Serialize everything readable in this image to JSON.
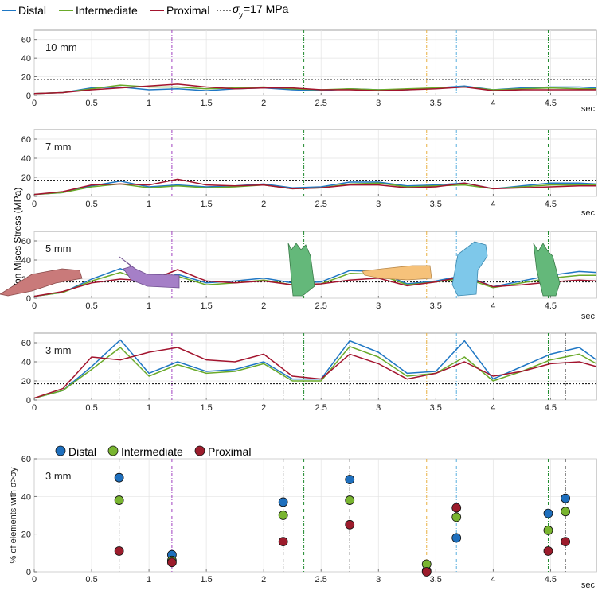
{
  "chart_data": [
    {
      "type": "line",
      "title": "",
      "panel_label": "10 mm",
      "xlabel": "sec",
      "ylabel": "",
      "xlim": [
        0,
        4.9
      ],
      "ylim": [
        0,
        70
      ],
      "xticks": [
        0,
        0.5,
        1,
        1.5,
        2,
        2.5,
        3,
        3.5,
        4,
        4.5
      ],
      "yticks": [
        0,
        20,
        40,
        60
      ],
      "x": [
        0,
        0.25,
        0.5,
        0.75,
        1,
        1.25,
        1.5,
        1.75,
        2,
        2.25,
        2.5,
        2.75,
        3,
        3.25,
        3.5,
        3.75,
        4,
        4.25,
        4.5,
        4.75,
        4.9
      ],
      "series": [
        {
          "name": "Distal",
          "values": [
            2,
            3,
            8,
            9,
            6,
            7,
            5,
            7,
            8,
            6,
            5,
            7,
            6,
            6,
            8,
            10,
            6,
            8,
            9,
            9,
            8
          ]
        },
        {
          "name": "Intermediate",
          "values": [
            2,
            3,
            7,
            11,
            9,
            9,
            7,
            8,
            9,
            7,
            6,
            7,
            6,
            7,
            8,
            9,
            6,
            7,
            8,
            7,
            7
          ]
        },
        {
          "name": "Proximal",
          "values": [
            2,
            3,
            6,
            8,
            10,
            12,
            9,
            7,
            8,
            8,
            6,
            6,
            5,
            6,
            7,
            9,
            5,
            6,
            6,
            6,
            6
          ]
        }
      ],
      "threshold": 17
    },
    {
      "type": "line",
      "title": "",
      "panel_label": "7 mm",
      "xlabel": "sec",
      "ylabel": "",
      "xlim": [
        0,
        4.9
      ],
      "ylim": [
        0,
        70
      ],
      "xticks": [
        0,
        0.5,
        1,
        1.5,
        2,
        2.5,
        3,
        3.5,
        4,
        4.5
      ],
      "yticks": [
        0,
        20,
        40,
        60
      ],
      "x": [
        0,
        0.25,
        0.5,
        0.75,
        1,
        1.25,
        1.5,
        1.75,
        2,
        2.25,
        2.5,
        2.75,
        3,
        3.25,
        3.5,
        3.75,
        4,
        4.25,
        4.5,
        4.75,
        4.9
      ],
      "series": [
        {
          "name": "Distal",
          "values": [
            2,
            4,
            11,
            16,
            10,
            12,
            10,
            11,
            13,
            9,
            10,
            15,
            15,
            11,
            12,
            14,
            8,
            11,
            14,
            14,
            13
          ]
        },
        {
          "name": "Intermediate",
          "values": [
            2,
            4,
            10,
            13,
            9,
            11,
            9,
            10,
            12,
            8,
            9,
            13,
            14,
            10,
            11,
            12,
            8,
            10,
            12,
            12,
            12
          ]
        },
        {
          "name": "Proximal",
          "values": [
            2,
            5,
            12,
            13,
            12,
            18,
            12,
            11,
            12,
            8,
            9,
            12,
            12,
            9,
            10,
            14,
            8,
            9,
            10,
            11,
            11
          ]
        }
      ],
      "threshold": 17
    },
    {
      "type": "line",
      "title": "",
      "panel_label": "5 mm",
      "xlabel": "sec",
      "ylabel": "Von Mises Stress (MPa)",
      "xlim": [
        0,
        4.9
      ],
      "ylim": [
        0,
        70
      ],
      "xticks": [
        0,
        0.5,
        1,
        1.5,
        2,
        2.5,
        3,
        3.5,
        4,
        4.5
      ],
      "yticks": [
        0,
        20,
        40,
        60
      ],
      "x": [
        0,
        0.25,
        0.5,
        0.75,
        1,
        1.25,
        1.5,
        1.75,
        2,
        2.25,
        2.5,
        2.75,
        3,
        3.25,
        3.5,
        3.75,
        4,
        4.25,
        4.5,
        4.75,
        4.9
      ],
      "series": [
        {
          "name": "Distal",
          "values": [
            2,
            6,
            20,
            31,
            18,
            25,
            16,
            18,
            21,
            16,
            17,
            29,
            28,
            15,
            18,
            24,
            12,
            18,
            24,
            28,
            27
          ]
        },
        {
          "name": "Intermediate",
          "values": [
            2,
            6,
            18,
            27,
            16,
            23,
            14,
            16,
            19,
            14,
            15,
            26,
            25,
            14,
            17,
            21,
            11,
            16,
            21,
            24,
            24
          ]
        },
        {
          "name": "Proximal",
          "values": [
            2,
            7,
            16,
            20,
            18,
            30,
            18,
            16,
            18,
            14,
            15,
            19,
            21,
            13,
            17,
            23,
            12,
            14,
            17,
            19,
            18
          ]
        }
      ],
      "threshold": 17
    },
    {
      "type": "line",
      "title": "",
      "panel_label": "3 mm",
      "xlabel": "",
      "ylabel": "",
      "xlim": [
        0,
        4.9
      ],
      "ylim": [
        0,
        70
      ],
      "xticks": [
        0,
        0.5,
        1,
        1.5,
        2,
        2.5,
        3,
        3.5,
        4,
        4.5
      ],
      "yticks": [
        0,
        20,
        40,
        60
      ],
      "x": [
        0,
        0.25,
        0.5,
        0.75,
        1,
        1.25,
        1.5,
        1.75,
        2,
        2.25,
        2.5,
        2.75,
        3,
        3.25,
        3.5,
        3.75,
        4,
        4.25,
        4.5,
        4.75,
        4.9
      ],
      "series": [
        {
          "name": "Distal",
          "values": [
            2,
            10,
            35,
            63,
            28,
            40,
            30,
            32,
            40,
            22,
            22,
            62,
            50,
            28,
            30,
            62,
            22,
            35,
            48,
            55,
            42
          ]
        },
        {
          "name": "Intermediate",
          "values": [
            2,
            10,
            32,
            55,
            25,
            37,
            28,
            30,
            38,
            20,
            20,
            56,
            45,
            25,
            28,
            45,
            20,
            30,
            42,
            48,
            38
          ]
        },
        {
          "name": "Proximal",
          "values": [
            2,
            12,
            45,
            42,
            50,
            55,
            42,
            40,
            48,
            25,
            22,
            48,
            38,
            22,
            28,
            40,
            25,
            30,
            38,
            40,
            35
          ]
        }
      ],
      "threshold": 17
    },
    {
      "type": "scatter",
      "title": "",
      "panel_label": "3 mm",
      "xlabel": "sec",
      "ylabel": "% of elements with σ>σy",
      "xlim": [
        0,
        4.9
      ],
      "ylim": [
        0,
        60
      ],
      "xticks": [
        0,
        0.5,
        1,
        1.5,
        2,
        2.5,
        3,
        3.5,
        4,
        4.5
      ],
      "yticks": [
        0,
        20,
        40,
        60
      ],
      "x": [
        0.74,
        1.2,
        2.17,
        2.75,
        3.42,
        3.68,
        4.48,
        4.63
      ],
      "series": [
        {
          "name": "Distal",
          "values": [
            50,
            9,
            37,
            49,
            0.5,
            18,
            31,
            39
          ]
        },
        {
          "name": "Intermediate",
          "values": [
            38,
            6,
            30,
            38,
            4,
            29,
            22,
            32
          ]
        },
        {
          "name": "Proximal",
          "values": [
            11,
            5,
            16,
            25,
            0,
            34,
            11,
            16
          ]
        }
      ]
    }
  ],
  "legend_top": {
    "items": [
      "Distal",
      "Intermediate",
      "Proximal"
    ],
    "threshold_label": "σ",
    "threshold_sub": "y",
    "threshold_value": "=17 MPa"
  },
  "legend_bottom": {
    "items": [
      "Distal",
      "Intermediate",
      "Proximal"
    ]
  },
  "colors": {
    "distal_line": "#1f77c4",
    "intermediate_line": "#6aaa2a",
    "proximal_line": "#a3142e",
    "distal_marker": "#1e6fbd",
    "intermediate_marker": "#79b530",
    "proximal_marker": "#9c1c2c",
    "vline_purple": "#a040c0",
    "vline_green": "#1f8a2e",
    "vline_orange": "#e8b040",
    "vline_blue": "#5ab0e0",
    "vline_dark": "#404040"
  },
  "event_lines": {
    "top_panels": [
      {
        "x": 1.2,
        "color": "#a040c0"
      },
      {
        "x": 2.35,
        "color": "#1f8a2e"
      },
      {
        "x": 3.42,
        "color": "#e8b040"
      },
      {
        "x": 3.68,
        "color": "#5ab0e0"
      },
      {
        "x": 4.48,
        "color": "#1f8a2e"
      }
    ],
    "panel_3mm_extra_dark": [
      0.74,
      2.17,
      2.75,
      4.63
    ],
    "hand_icons": [
      {
        "name": "hand-rose-icon",
        "color": "#c97a7a"
      },
      {
        "name": "hand-purple-icon",
        "color": "#a57fc7"
      },
      {
        "name": "hand-green-icon",
        "color": "#64b87a"
      },
      {
        "name": "hand-orange-icon",
        "color": "#f6c27a"
      },
      {
        "name": "hand-blue-icon",
        "color": "#7ec8ea"
      },
      {
        "name": "hand-green2-icon",
        "color": "#64b87a"
      }
    ]
  }
}
